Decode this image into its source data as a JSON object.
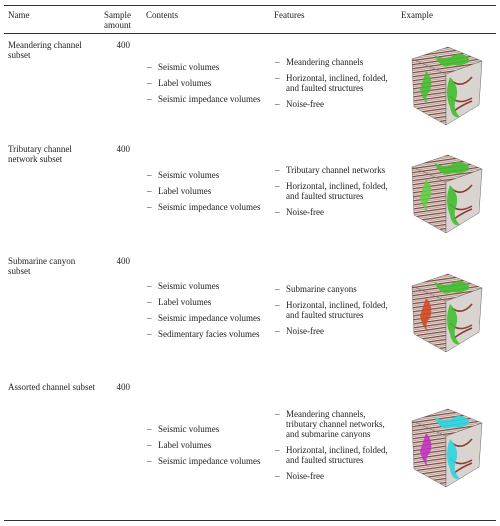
{
  "table": {
    "header": [
      "Name",
      "Sample amount",
      "Contents",
      "Features",
      "Example"
    ],
    "rows": [
      {
        "name": "Meandering channel subset",
        "amount": 400,
        "contents": [
          "Seismic volumes",
          "Label volumes",
          "Seismic impedance volumes"
        ],
        "features": [
          "Meandering channels",
          "Horizontal, inclined, folded, and faulted structures",
          "Noise-free"
        ]
      },
      {
        "name": "Tributary channel network subset",
        "amount": 400,
        "contents": [
          "Seismic volumes",
          "Label volumes",
          "Seismic impedance volumes"
        ],
        "features": [
          "Tributary channel networks",
          "Horizontal, inclined, folded, and faulted structures",
          "Noise-free"
        ]
      },
      {
        "name": "Submarine canyon subset",
        "amount": 400,
        "contents": [
          "Seismic volumes",
          "Label volumes",
          "Seismic impedance volumes",
          "Sedimentary facies volumes"
        ],
        "features": [
          "Submarine canyons",
          "Horizontal, inclined, folded, and faulted structures",
          "Noise-free"
        ]
      },
      {
        "name": "Assorted channel subset",
        "amount": 400,
        "contents": [
          "Seismic volumes",
          "Label volumes",
          "Seismic impedance volumes"
        ],
        "features": [
          "Meandering channels, tributary channel networks, and submarine canyons",
          "Horizontal, inclined, folded, and faulted structures",
          "Noise-free"
        ]
      }
    ]
  }
}
